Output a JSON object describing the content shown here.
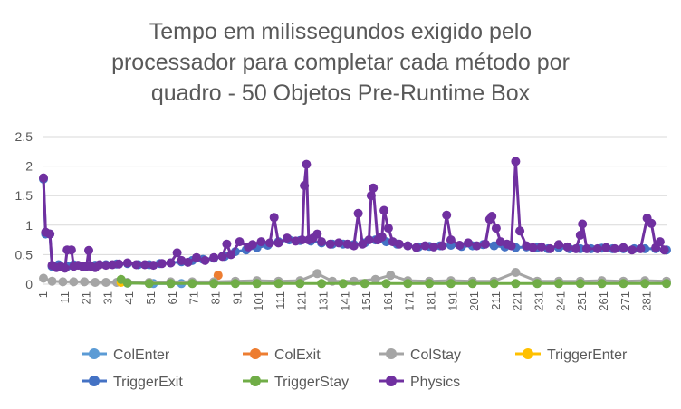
{
  "chart_data": {
    "type": "line",
    "title": "Tempo em milissegundos exigido pelo processador para completar cada método por quadro - 50 Objetos Pre-Runtime Box",
    "title_lines": [
      "Tempo em milissegundos exigido pelo",
      "processador para completar cada método por",
      "quadro - 50 Objetos Pre-Runtime Box"
    ],
    "xlabel": "",
    "ylabel": "",
    "x_range": [
      1,
      290
    ],
    "ylim": [
      0,
      2.5
    ],
    "y_ticks": [
      "0",
      "0.5",
      "1",
      "1.5",
      "2",
      "2.5"
    ],
    "x_ticks": [
      "1",
      "11",
      "21",
      "31",
      "41",
      "51",
      "61",
      "71",
      "81",
      "91",
      "101",
      "111",
      "121",
      "131",
      "141",
      "151",
      "161",
      "171",
      "181",
      "191",
      "201",
      "211",
      "221",
      "231",
      "241",
      "251",
      "261",
      "271",
      "281"
    ],
    "grid": true,
    "legend_position": "bottom",
    "legend": [
      "ColEnter",
      "ColExit",
      "ColStay",
      "TriggerEnter",
      "TriggerExit",
      "TriggerStay",
      "Physics"
    ],
    "series": [
      {
        "name": "ColEnter",
        "color": "#5b9bd5",
        "points": [
          [
            40,
            0.02
          ],
          [
            52,
            0.01
          ],
          [
            65,
            0.01
          ]
        ]
      },
      {
        "name": "ColExit",
        "color": "#ed7d31",
        "points": [
          [
            82,
            0.15
          ]
        ]
      },
      {
        "name": "ColStay",
        "color": "#a5a5a5",
        "points": [
          [
            1,
            0.1
          ],
          [
            5,
            0.05
          ],
          [
            10,
            0.04
          ],
          [
            15,
            0.04
          ],
          [
            20,
            0.04
          ],
          [
            25,
            0.03
          ],
          [
            30,
            0.03
          ],
          [
            35,
            0.03
          ],
          [
            40,
            0.03
          ],
          [
            50,
            0.03
          ],
          [
            60,
            0.04
          ],
          [
            70,
            0.04
          ],
          [
            80,
            0.04
          ],
          [
            90,
            0.05
          ],
          [
            100,
            0.06
          ],
          [
            110,
            0.05
          ],
          [
            120,
            0.06
          ],
          [
            128,
            0.18
          ],
          [
            135,
            0.05
          ],
          [
            145,
            0.05
          ],
          [
            155,
            0.08
          ],
          [
            162,
            0.15
          ],
          [
            170,
            0.06
          ],
          [
            180,
            0.05
          ],
          [
            190,
            0.06
          ],
          [
            200,
            0.05
          ],
          [
            210,
            0.05
          ],
          [
            220,
            0.2
          ],
          [
            230,
            0.05
          ],
          [
            240,
            0.05
          ],
          [
            250,
            0.05
          ],
          [
            260,
            0.06
          ],
          [
            270,
            0.05
          ],
          [
            280,
            0.06
          ],
          [
            290,
            0.05
          ]
        ]
      },
      {
        "name": "TriggerEnter",
        "color": "#ffc000",
        "points": [
          [
            37,
            0.03
          ]
        ]
      },
      {
        "name": "TriggerExit",
        "color": "#4472c4",
        "points": [
          [
            1,
            1.78
          ],
          [
            2,
            0.85
          ],
          [
            4,
            0.85
          ],
          [
            5,
            0.3
          ],
          [
            8,
            0.33
          ],
          [
            12,
            0.3
          ],
          [
            15,
            0.33
          ],
          [
            20,
            0.3
          ],
          [
            25,
            0.32
          ],
          [
            30,
            0.33
          ],
          [
            35,
            0.34
          ],
          [
            40,
            0.35
          ],
          [
            45,
            0.33
          ],
          [
            50,
            0.33
          ],
          [
            55,
            0.35
          ],
          [
            60,
            0.36
          ],
          [
            65,
            0.38
          ],
          [
            70,
            0.4
          ],
          [
            75,
            0.42
          ],
          [
            80,
            0.44
          ],
          [
            85,
            0.47
          ],
          [
            90,
            0.55
          ],
          [
            95,
            0.58
          ],
          [
            100,
            0.62
          ],
          [
            105,
            0.66
          ],
          [
            110,
            0.72
          ],
          [
            115,
            0.75
          ],
          [
            120,
            0.74
          ],
          [
            125,
            0.73
          ],
          [
            130,
            0.7
          ],
          [
            135,
            0.68
          ],
          [
            140,
            0.68
          ],
          [
            145,
            0.67
          ],
          [
            150,
            0.7
          ],
          [
            155,
            0.75
          ],
          [
            160,
            0.72
          ],
          [
            165,
            0.68
          ],
          [
            170,
            0.65
          ],
          [
            175,
            0.63
          ],
          [
            180,
            0.64
          ],
          [
            185,
            0.65
          ],
          [
            190,
            0.66
          ],
          [
            195,
            0.64
          ],
          [
            200,
            0.65
          ],
          [
            205,
            0.67
          ],
          [
            210,
            0.65
          ],
          [
            215,
            0.63
          ],
          [
            220,
            0.62
          ],
          [
            225,
            0.63
          ],
          [
            230,
            0.62
          ],
          [
            235,
            0.6
          ],
          [
            240,
            0.62
          ],
          [
            245,
            0.6
          ],
          [
            250,
            0.6
          ],
          [
            255,
            0.6
          ],
          [
            260,
            0.61
          ],
          [
            265,
            0.6
          ],
          [
            270,
            0.6
          ],
          [
            275,
            0.6
          ],
          [
            280,
            0.6
          ],
          [
            285,
            0.6
          ],
          [
            290,
            0.58
          ]
        ]
      },
      {
        "name": "TriggerStay",
        "color": "#70ad47",
        "points": [
          [
            37,
            0.08
          ],
          [
            40,
            0.02
          ],
          [
            50,
            0.01
          ],
          [
            60,
            0.01
          ],
          [
            70,
            0.01
          ],
          [
            80,
            0.01
          ],
          [
            90,
            0.01
          ],
          [
            100,
            0.01
          ],
          [
            110,
            0.01
          ],
          [
            120,
            0.01
          ],
          [
            130,
            0.01
          ],
          [
            140,
            0.01
          ],
          [
            150,
            0.01
          ],
          [
            160,
            0.01
          ],
          [
            170,
            0.01
          ],
          [
            180,
            0.01
          ],
          [
            190,
            0.01
          ],
          [
            200,
            0.01
          ],
          [
            210,
            0.01
          ],
          [
            220,
            0.01
          ],
          [
            230,
            0.01
          ],
          [
            240,
            0.01
          ],
          [
            250,
            0.01
          ],
          [
            260,
            0.01
          ],
          [
            270,
            0.01
          ],
          [
            280,
            0.01
          ],
          [
            290,
            0.01
          ]
        ]
      },
      {
        "name": "Physics",
        "color": "#7030a0",
        "points": [
          [
            1,
            1.8
          ],
          [
            2,
            0.88
          ],
          [
            4,
            0.85
          ],
          [
            5,
            0.32
          ],
          [
            7,
            0.28
          ],
          [
            9,
            0.3
          ],
          [
            11,
            0.27
          ],
          [
            12,
            0.58
          ],
          [
            14,
            0.58
          ],
          [
            15,
            0.3
          ],
          [
            17,
            0.32
          ],
          [
            19,
            0.3
          ],
          [
            21,
            0.3
          ],
          [
            22,
            0.57
          ],
          [
            23,
            0.3
          ],
          [
            25,
            0.28
          ],
          [
            27,
            0.33
          ],
          [
            30,
            0.32
          ],
          [
            33,
            0.33
          ],
          [
            36,
            0.34
          ],
          [
            40,
            0.36
          ],
          [
            44,
            0.33
          ],
          [
            48,
            0.33
          ],
          [
            52,
            0.32
          ],
          [
            56,
            0.35
          ],
          [
            60,
            0.36
          ],
          [
            63,
            0.53
          ],
          [
            65,
            0.4
          ],
          [
            68,
            0.37
          ],
          [
            72,
            0.45
          ],
          [
            76,
            0.4
          ],
          [
            80,
            0.45
          ],
          [
            84,
            0.47
          ],
          [
            86,
            0.68
          ],
          [
            88,
            0.5
          ],
          [
            92,
            0.72
          ],
          [
            96,
            0.63
          ],
          [
            98,
            0.67
          ],
          [
            102,
            0.72
          ],
          [
            106,
            0.7
          ],
          [
            108,
            1.13
          ],
          [
            110,
            0.7
          ],
          [
            114,
            0.78
          ],
          [
            118,
            0.73
          ],
          [
            121,
            0.75
          ],
          [
            122,
            1.67
          ],
          [
            123,
            2.03
          ],
          [
            124,
            0.75
          ],
          [
            126,
            0.78
          ],
          [
            128,
            0.85
          ],
          [
            130,
            0.72
          ],
          [
            134,
            0.68
          ],
          [
            138,
            0.7
          ],
          [
            142,
            0.68
          ],
          [
            145,
            0.65
          ],
          [
            147,
            1.2
          ],
          [
            149,
            0.68
          ],
          [
            152,
            0.75
          ],
          [
            153,
            1.5
          ],
          [
            154,
            1.63
          ],
          [
            156,
            0.75
          ],
          [
            158,
            0.8
          ],
          [
            159,
            1.25
          ],
          [
            161,
            0.95
          ],
          [
            163,
            0.72
          ],
          [
            166,
            0.68
          ],
          [
            170,
            0.65
          ],
          [
            174,
            0.62
          ],
          [
            178,
            0.65
          ],
          [
            182,
            0.63
          ],
          [
            186,
            0.65
          ],
          [
            188,
            1.17
          ],
          [
            190,
            0.75
          ],
          [
            194,
            0.66
          ],
          [
            198,
            0.7
          ],
          [
            202,
            0.65
          ],
          [
            206,
            0.68
          ],
          [
            208,
            1.1
          ],
          [
            209,
            1.15
          ],
          [
            211,
            0.95
          ],
          [
            213,
            0.72
          ],
          [
            216,
            0.68
          ],
          [
            218,
            0.65
          ],
          [
            220,
            2.08
          ],
          [
            222,
            0.9
          ],
          [
            225,
            0.65
          ],
          [
            228,
            0.62
          ],
          [
            232,
            0.63
          ],
          [
            236,
            0.6
          ],
          [
            240,
            0.67
          ],
          [
            244,
            0.63
          ],
          [
            248,
            0.6
          ],
          [
            250,
            0.83
          ],
          [
            251,
            1.02
          ],
          [
            253,
            0.6
          ],
          [
            258,
            0.6
          ],
          [
            262,
            0.62
          ],
          [
            266,
            0.6
          ],
          [
            270,
            0.62
          ],
          [
            274,
            0.58
          ],
          [
            278,
            0.6
          ],
          [
            281,
            1.12
          ],
          [
            283,
            1.03
          ],
          [
            285,
            0.62
          ],
          [
            287,
            0.72
          ],
          [
            289,
            0.58
          ]
        ]
      }
    ]
  }
}
